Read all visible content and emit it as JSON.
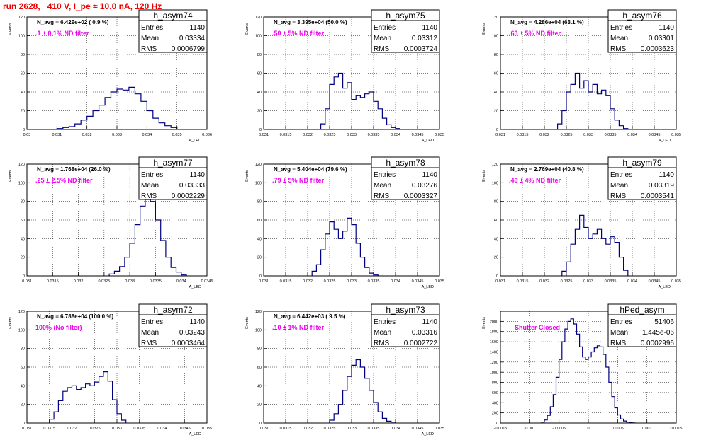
{
  "page": {
    "title": "run 2628,   410 V, I_pe ≈ 10.0 nA, 120 Hz",
    "colors": {
      "title": "#ee0000",
      "note": "#ee00ee",
      "histogram": "#000080"
    }
  },
  "chart_data": [
    {
      "type": "histogram",
      "name": "h_asym74",
      "stats": {
        "entries": "1140",
        "mean": "0.03334",
        "rms": "0.0006799"
      },
      "annotation": "N_avg = 6.429e+02 ( 0.9 %)",
      "note": ".1 ± 0.1% ND filter",
      "ylabel": "Events",
      "xlabel": "A_LED",
      "xlim": [
        0.03,
        0.036
      ],
      "ylim": [
        0,
        120
      ],
      "yticks": [
        0,
        20,
        40,
        60,
        80,
        100,
        120
      ],
      "xtick_labels": [
        "0.03",
        "0.031",
        "0.032",
        "0.033",
        "0.034",
        "0.035",
        "0.036"
      ],
      "grid": true,
      "legend": "top-right",
      "bins_x": [
        0.031,
        0.0312,
        0.0314,
        0.0316,
        0.0318,
        0.032,
        0.0322,
        0.0324,
        0.0326,
        0.0328,
        0.033,
        0.0332,
        0.0334,
        0.0336,
        0.0338,
        0.034,
        0.0342,
        0.0344,
        0.0346,
        0.0348,
        0.035
      ],
      "bins_y": [
        1,
        2,
        3,
        6,
        10,
        14,
        20,
        26,
        34,
        40,
        43,
        42,
        45,
        38,
        30,
        20,
        12,
        7,
        4,
        2
      ]
    },
    {
      "type": "histogram",
      "name": "h_asym75",
      "stats": {
        "entries": "1140",
        "mean": "0.03312",
        "rms": "0.0003724"
      },
      "annotation": "N_avg = 3.395e+04 (50.0 %)",
      "note": ".50 ± 5% ND filter",
      "ylabel": "Events",
      "xlabel": "A_LED",
      "xlim": [
        0.031,
        0.035
      ],
      "ylim": [
        0,
        120
      ],
      "yticks": [
        0,
        20,
        40,
        60,
        80,
        100,
        120
      ],
      "xtick_labels": [
        "0.031",
        "0.0315",
        "0.032",
        "0.0325",
        "0.033",
        "0.0335",
        "0.034",
        "0.0345",
        "0.035"
      ],
      "grid": true,
      "legend": "top-right",
      "bins_x": [
        0.0323,
        0.0324,
        0.0325,
        0.0326,
        0.0327,
        0.0328,
        0.0329,
        0.033,
        0.0331,
        0.0332,
        0.0333,
        0.0334,
        0.0335,
        0.0336,
        0.0337,
        0.0338,
        0.0339,
        0.034,
        0.0341
      ],
      "bins_y": [
        6,
        22,
        48,
        56,
        60,
        44,
        50,
        32,
        36,
        34,
        38,
        40,
        30,
        22,
        12,
        5,
        2,
        1
      ]
    },
    {
      "type": "histogram",
      "name": "h_asym76",
      "stats": {
        "entries": "1140",
        "mean": "0.03301",
        "rms": "0.0003623"
      },
      "annotation": "N_avg = 4.286e+04 (63.1 %)",
      "note": ".63 ± 5% ND filter",
      "ylabel": "Events",
      "xlabel": "A_LED",
      "xlim": [
        0.031,
        0.035
      ],
      "ylim": [
        0,
        120
      ],
      "yticks": [
        0,
        20,
        40,
        60,
        80,
        100,
        120
      ],
      "xtick_labels": [
        "0.031",
        "0.0315",
        "0.032",
        "0.0325",
        "0.033",
        "0.0335",
        "0.034",
        "0.0345",
        "0.035"
      ],
      "grid": true,
      "legend": "top-right",
      "bins_x": [
        0.0323,
        0.0324,
        0.0325,
        0.0326,
        0.0327,
        0.0328,
        0.0329,
        0.033,
        0.0331,
        0.0332,
        0.0333,
        0.0334,
        0.0335,
        0.0336,
        0.0337,
        0.0338,
        0.0339
      ],
      "bins_y": [
        6,
        20,
        40,
        48,
        60,
        44,
        52,
        40,
        48,
        38,
        42,
        36,
        22,
        10,
        4,
        1
      ]
    },
    {
      "type": "histogram",
      "name": "h_asym77",
      "stats": {
        "entries": "1140",
        "mean": "0.03333",
        "rms": "0.0002229"
      },
      "annotation": "N_avg = 1.768e+04 (26.0 %)",
      "note": ".25 ± 2.5% ND filter",
      "ylabel": "Events",
      "xlabel": "A_LED",
      "xlim": [
        0.031,
        0.0345
      ],
      "ylim": [
        0,
        120
      ],
      "yticks": [
        0,
        20,
        40,
        60,
        80,
        100,
        120
      ],
      "xtick_labels": [
        "0.031",
        "0.0315",
        "0.032",
        "0.0325",
        "0.033",
        "0.0335",
        "0.034",
        "0.0345"
      ],
      "grid": true,
      "legend": "top-right",
      "bins_x": [
        0.0326,
        0.0327,
        0.0328,
        0.0329,
        0.033,
        0.0331,
        0.0332,
        0.0333,
        0.0334,
        0.0335,
        0.0336,
        0.0337,
        0.0338,
        0.0339,
        0.034,
        0.0341
      ],
      "bins_y": [
        2,
        5,
        10,
        20,
        35,
        55,
        75,
        82,
        80,
        60,
        38,
        20,
        9,
        4,
        1
      ]
    },
    {
      "type": "histogram",
      "name": "h_asym78",
      "stats": {
        "entries": "1140",
        "mean": "0.03276",
        "rms": "0.0003327"
      },
      "annotation": "N_avg = 5.404e+04 (79.6 %)",
      "note": ".79 ± 5% ND filter",
      "ylabel": "Events",
      "xlabel": "A_LED",
      "xlim": [
        0.031,
        0.035
      ],
      "ylim": [
        0,
        120
      ],
      "yticks": [
        0,
        20,
        40,
        60,
        80,
        100,
        120
      ],
      "xtick_labels": [
        "0.031",
        "0.0315",
        "0.032",
        "0.0325",
        "0.033",
        "0.0335",
        "0.034",
        "0.0345",
        "0.035"
      ],
      "grid": true,
      "legend": "top-right",
      "bins_x": [
        0.0321,
        0.0322,
        0.0323,
        0.0324,
        0.0325,
        0.0326,
        0.0327,
        0.0328,
        0.0329,
        0.033,
        0.0331,
        0.0332,
        0.0333,
        0.0334,
        0.0335,
        0.0336
      ],
      "bins_y": [
        5,
        12,
        28,
        45,
        58,
        50,
        40,
        48,
        62,
        55,
        35,
        20,
        9,
        3,
        1
      ]
    },
    {
      "type": "histogram",
      "name": "h_asym79",
      "stats": {
        "entries": "1140",
        "mean": "0.03319",
        "rms": "0.0003541"
      },
      "annotation": "N_avg = 2.769e+04 (40.8 %)",
      "note": ".40 ± 4% ND filter",
      "ylabel": "Events",
      "xlabel": "A_LED",
      "xlim": [
        0.031,
        0.035
      ],
      "ylim": [
        0,
        120
      ],
      "yticks": [
        0,
        20,
        40,
        60,
        80,
        100,
        120
      ],
      "xtick_labels": [
        "0.031",
        "0.0315",
        "0.032",
        "0.0325",
        "0.033",
        "0.0335",
        "0.034",
        "0.0345",
        "0.035"
      ],
      "grid": true,
      "legend": "top-right",
      "bins_x": [
        0.0324,
        0.0325,
        0.0326,
        0.0327,
        0.0328,
        0.0329,
        0.033,
        0.0331,
        0.0332,
        0.0333,
        0.0334,
        0.0335,
        0.0336,
        0.0337,
        0.0338,
        0.0339
      ],
      "bins_y": [
        5,
        15,
        34,
        50,
        65,
        52,
        40,
        45,
        50,
        40,
        34,
        42,
        36,
        20,
        6
      ]
    },
    {
      "type": "histogram",
      "name": "h_asym72",
      "stats": {
        "entries": "1140",
        "mean": "0.03243",
        "rms": "0.0003464"
      },
      "annotation": "N_avg = 6.788e+04 (100.0 %)",
      "note": "100% (No filter)",
      "ylabel": "Events",
      "xlabel": "A_LED",
      "xlim": [
        0.031,
        0.035
      ],
      "ylim": [
        0,
        120
      ],
      "yticks": [
        0,
        20,
        40,
        60,
        80,
        100,
        120
      ],
      "xtick_labels": [
        "0.031",
        "0.0315",
        "0.032",
        "0.0325",
        "0.033",
        "0.0335",
        "0.034",
        "0.0345",
        "0.035"
      ],
      "grid": true,
      "legend": "top-right",
      "bins_x": [
        0.0315,
        0.0316,
        0.0317,
        0.0318,
        0.0319,
        0.032,
        0.0321,
        0.0322,
        0.0323,
        0.0324,
        0.0325,
        0.0326,
        0.0327,
        0.0328,
        0.0329,
        0.033,
        0.0331,
        0.0332
      ],
      "bins_y": [
        4,
        12,
        24,
        34,
        38,
        40,
        36,
        38,
        42,
        40,
        44,
        50,
        55,
        45,
        25,
        10,
        3
      ]
    },
    {
      "type": "histogram",
      "name": "h_asym73",
      "stats": {
        "entries": "1140",
        "mean": "0.03316",
        "rms": "0.0002722"
      },
      "annotation": "N_avg = 6.442e+03 ( 9.5 %)",
      "note": ".10 ± 1% ND filter",
      "ylabel": "Events",
      "xlabel": "A_LED",
      "xlim": [
        0.031,
        0.035
      ],
      "ylim": [
        0,
        120
      ],
      "yticks": [
        0,
        20,
        40,
        60,
        80,
        100,
        120
      ],
      "xtick_labels": [
        "0.031",
        "0.0315",
        "0.032",
        "0.0325",
        "0.033",
        "0.0335",
        "0.034",
        "0.0345",
        "0.035"
      ],
      "grid": true,
      "legend": "top-right",
      "bins_x": [
        0.0325,
        0.0326,
        0.0327,
        0.0328,
        0.0329,
        0.033,
        0.0331,
        0.0332,
        0.0333,
        0.0334,
        0.0335,
        0.0336,
        0.0337,
        0.0338,
        0.0339,
        0.034
      ],
      "bins_y": [
        3,
        10,
        20,
        35,
        50,
        62,
        68,
        60,
        48,
        35,
        22,
        12,
        5,
        2,
        1
      ]
    },
    {
      "type": "histogram",
      "name": "hPed_asym",
      "stats": {
        "entries": "51406",
        "mean": "1.445e-06",
        "rms": "0.0002996"
      },
      "annotation": "",
      "note": "Shutter Closed",
      "ylabel": "Events",
      "xlabel": "",
      "xlim": [
        -0.0015,
        0.0015
      ],
      "ylim": [
        0,
        2200
      ],
      "yticks": [
        0,
        200,
        400,
        600,
        800,
        1000,
        1200,
        1400,
        1600,
        1800,
        2000
      ],
      "xtick_labels": [
        "-0.0015",
        "-0.001",
        "-0.0005",
        "0",
        "0.0005",
        "0.001",
        "0.0015"
      ],
      "grid": true,
      "legend": "top-right",
      "bins_x": [
        -0.0008,
        -0.00075,
        -0.0007,
        -0.00065,
        -0.0006,
        -0.00055,
        -0.0005,
        -0.00045,
        -0.0004,
        -0.00035,
        -0.0003,
        -0.00025,
        -0.0002,
        -0.00015,
        -0.0001,
        -5e-05,
        0,
        5e-05,
        0.0001,
        0.00015,
        0.0002,
        0.00025,
        0.0003,
        0.00035,
        0.0004,
        0.00045,
        0.0005,
        0.00055,
        0.0006,
        0.00065,
        0.0007,
        0.00075,
        0.0008
      ],
      "bins_y": [
        20,
        60,
        150,
        320,
        560,
        900,
        1250,
        1600,
        1850,
        2000,
        2050,
        1950,
        1750,
        1500,
        1300,
        1250,
        1300,
        1400,
        1480,
        1520,
        1500,
        1350,
        1100,
        800,
        520,
        300,
        160,
        80,
        40,
        18,
        8,
        3
      ]
    }
  ]
}
